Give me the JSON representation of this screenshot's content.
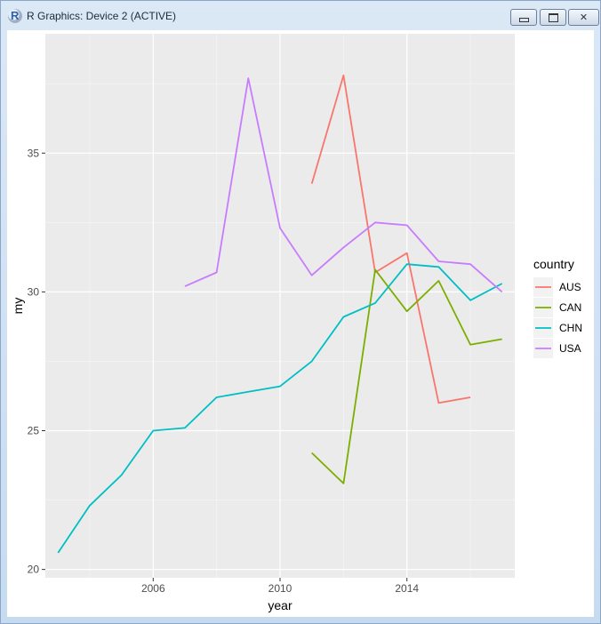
{
  "window": {
    "title": "R Graphics: Device 2 (ACTIVE)",
    "icon": "r-logo-icon"
  },
  "chart_data": {
    "type": "line",
    "title": "",
    "xlabel": "year",
    "ylabel": "my",
    "xlim": [
      2002.6,
      2017.4
    ],
    "ylim": [
      19.7,
      39.3
    ],
    "x_ticks": [
      2006,
      2010,
      2014
    ],
    "y_ticks": [
      20,
      25,
      30,
      35
    ],
    "grid": true,
    "legend": {
      "title": "country",
      "position": "right"
    },
    "series": [
      {
        "name": "AUS",
        "color": "#F8766D",
        "x": [
          2011,
          2012,
          2013,
          2014,
          2015,
          2016
        ],
        "y": [
          33.9,
          37.8,
          30.7,
          31.4,
          26.0,
          26.2
        ]
      },
      {
        "name": "CAN",
        "color": "#7CAE00",
        "x": [
          2011,
          2012,
          2013,
          2014,
          2015,
          2016,
          2017
        ],
        "y": [
          24.2,
          23.1,
          30.8,
          29.3,
          30.4,
          28.1,
          28.3
        ]
      },
      {
        "name": "CHN",
        "color": "#00BFC4",
        "x": [
          2003,
          2004,
          2005,
          2006,
          2007,
          2008,
          2009,
          2010,
          2011,
          2012,
          2013,
          2014,
          2015,
          2016,
          2017
        ],
        "y": [
          20.6,
          22.3,
          23.4,
          25.0,
          25.1,
          26.2,
          26.4,
          26.6,
          27.5,
          29.1,
          29.6,
          31.0,
          30.9,
          29.7,
          30.3
        ]
      },
      {
        "name": "USA",
        "color": "#C77CFF",
        "x": [
          2007,
          2008,
          2009,
          2010,
          2011,
          2012,
          2013,
          2014,
          2015,
          2016,
          2017
        ],
        "y": [
          30.2,
          30.7,
          37.7,
          32.3,
          30.6,
          31.6,
          32.5,
          32.4,
          31.1,
          31.0,
          30.0
        ]
      }
    ]
  }
}
